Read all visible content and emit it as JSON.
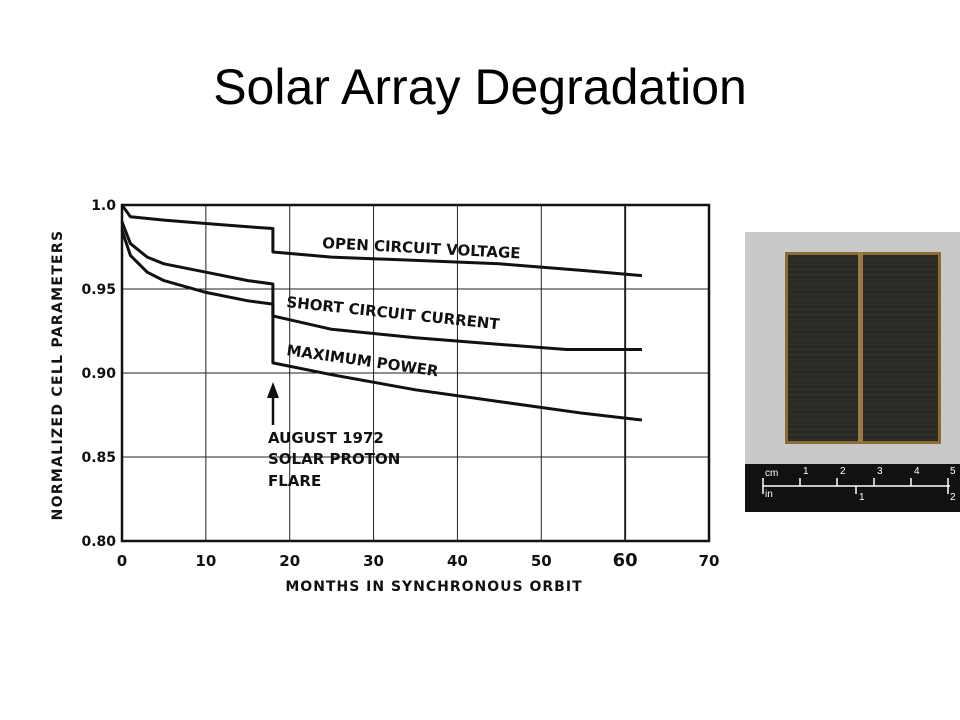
{
  "slide": {
    "title": "Solar Array Degradation"
  },
  "chart_data": {
    "type": "line",
    "xlabel": "MONTHS IN SYNCHRONOUS ORBIT",
    "ylabel": "NORMALIZED CELL PARAMETERS",
    "xlim": [
      0,
      70
    ],
    "ylim": [
      0.8,
      1.0
    ],
    "x_ticks": [
      "0",
      "10",
      "20",
      "30",
      "40",
      "50",
      "60",
      "70"
    ],
    "y_ticks": [
      "1.0",
      "0.95",
      "0.90",
      "0.85",
      "0.80"
    ],
    "grid": true,
    "series": [
      {
        "name": "OPEN CIRCUIT VOLTAGE",
        "x": [
          0,
          1,
          5,
          10,
          15,
          18,
          18,
          25,
          35,
          45,
          55,
          62
        ],
        "y": [
          1.0,
          0.993,
          0.991,
          0.989,
          0.987,
          0.986,
          0.972,
          0.969,
          0.967,
          0.965,
          0.961,
          0.958
        ]
      },
      {
        "name": "SHORT CIRCUIT CURRENT",
        "x": [
          0,
          1,
          3,
          5,
          10,
          15,
          18,
          18,
          25,
          35,
          45,
          53,
          62
        ],
        "y": [
          0.99,
          0.977,
          0.969,
          0.965,
          0.96,
          0.955,
          0.953,
          0.934,
          0.926,
          0.921,
          0.917,
          0.914,
          0.914
        ]
      },
      {
        "name": "MAXIMUM POWER",
        "x": [
          0,
          1,
          3,
          5,
          10,
          15,
          18,
          18,
          25,
          35,
          45,
          55,
          62
        ],
        "y": [
          0.985,
          0.97,
          0.96,
          0.955,
          0.948,
          0.943,
          0.941,
          0.906,
          0.899,
          0.89,
          0.883,
          0.876,
          0.872
        ]
      }
    ],
    "annotations": [
      {
        "line1": "AUGUST 1972",
        "line2": "SOLAR PROTON",
        "line3": "FLARE",
        "x": 18
      }
    ]
  },
  "photo": {
    "ruler": {
      "unit_cm": "cm",
      "unit_in": "in",
      "cm_marks": [
        "1",
        "2",
        "3",
        "4",
        "5"
      ],
      "in_marks": [
        "1",
        "2"
      ]
    }
  }
}
